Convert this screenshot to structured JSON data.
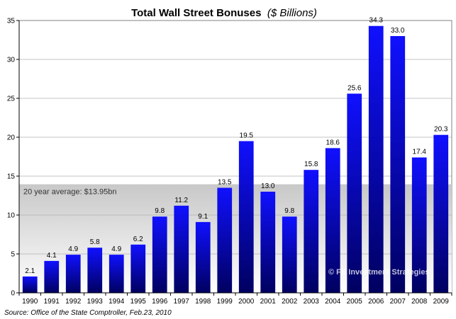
{
  "chart_data": {
    "type": "bar",
    "title": "Total Wall Street Bonuses",
    "title_unit": "($ Billions)",
    "categories": [
      "1990",
      "1991",
      "1992",
      "1993",
      "1994",
      "1995",
      "1996",
      "1997",
      "1998",
      "1999",
      "2000",
      "2001",
      "2002",
      "2003",
      "2004",
      "2005",
      "2006",
      "2007",
      "2008",
      "2009"
    ],
    "values": [
      2.1,
      4.1,
      4.9,
      5.8,
      4.9,
      6.2,
      9.8,
      11.2,
      9.1,
      13.5,
      19.5,
      13.0,
      9.8,
      15.8,
      18.6,
      25.6,
      34.3,
      33.0,
      17.4,
      20.3
    ],
    "value_labels": [
      "2.1",
      "4.1",
      "4.9",
      "5.8",
      "4.9",
      "6.2",
      "9.8",
      "11.2",
      "9.1",
      "13.5",
      "19.5",
      "13.0",
      "9.8",
      "15.8",
      "18.6",
      "25.6",
      "34.3",
      "33.0",
      "17.4",
      "20.3"
    ],
    "ylim": [
      0,
      35
    ],
    "yticks": [
      0,
      5,
      10,
      15,
      20,
      25,
      30,
      35
    ],
    "average_value": 13.95,
    "average_label": "20 year average: $13.95bn",
    "grid": true,
    "bar_color_top": "#1010ff",
    "bar_color_bottom": "#000060",
    "average_band_top": "#c8c8c8",
    "average_band_bottom": "#ffffff"
  },
  "source_note": "Source: Office of the State Comptroller, Feb.23, 2010",
  "watermark": "© FX Investment Strategies"
}
